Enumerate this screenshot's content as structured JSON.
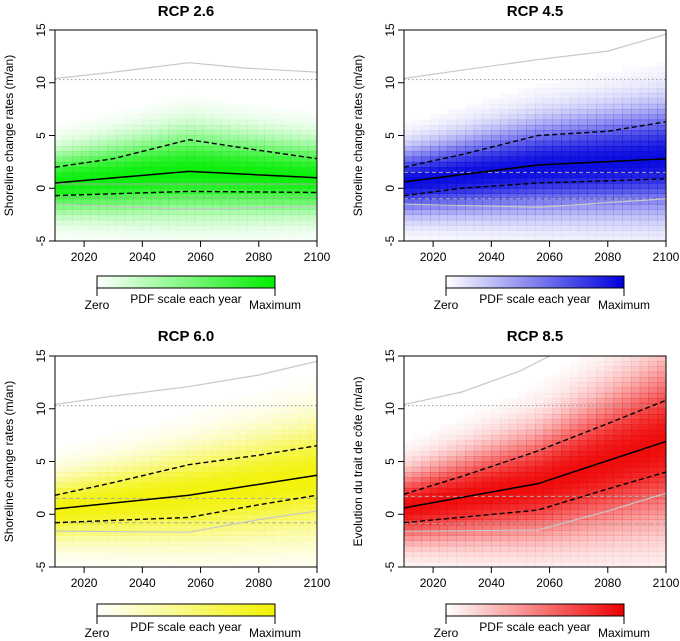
{
  "chart_data": [
    {
      "type": "heatmap",
      "title": "RCP 2.6",
      "ylabel": "Shoreline change rates (m/an)",
      "xlabel": "",
      "xlim": [
        2010,
        2100
      ],
      "ylim": [
        -5,
        15
      ],
      "xticks": [
        2020,
        2040,
        2060,
        2080,
        2100
      ],
      "yticks": [
        -5,
        0,
        5,
        10,
        15
      ],
      "color": "#00ee00",
      "density": {
        "center": [
          [
            2010,
            0.5
          ],
          [
            2056,
            1.6
          ],
          [
            2100,
            1.0
          ]
        ],
        "spread": [
          [
            2010,
            1.9
          ],
          [
            2056,
            2.6
          ],
          [
            2100,
            2.2
          ]
        ]
      },
      "series": [
        {
          "name": "median",
          "style": "solid",
          "x": [
            2010,
            2056,
            2100
          ],
          "y": [
            0.5,
            1.6,
            1.0
          ]
        },
        {
          "name": "upper bound",
          "style": "dashed",
          "x": [
            2010,
            2030,
            2056,
            2080,
            2100
          ],
          "y": [
            2.0,
            2.8,
            4.6,
            3.6,
            2.8
          ]
        },
        {
          "name": "lower bound",
          "style": "dashed",
          "x": [
            2010,
            2056,
            2100
          ],
          "y": [
            -0.7,
            -0.3,
            -0.4
          ]
        },
        {
          "name": "maximum",
          "style": "grey",
          "x": [
            2010,
            2030,
            2056,
            2075,
            2100
          ],
          "y": [
            10.4,
            11.0,
            11.9,
            11.4,
            11.0
          ]
        },
        {
          "name": "minimum",
          "style": "grey",
          "x": [
            2010,
            2056,
            2100
          ],
          "y": [
            -1.5,
            -2.0,
            -1.7
          ]
        }
      ],
      "reference_lines": [
        {
          "style": "dotted",
          "y": 10.3
        },
        {
          "style": "grey-dashed",
          "y": -0.9
        },
        {
          "style": "grey-solid",
          "y": 0.4
        }
      ],
      "legend": {
        "left_label": "Zero",
        "center_label": "PDF scale each year",
        "right_label": "Maximum"
      }
    },
    {
      "type": "heatmap",
      "title": "RCP 4.5",
      "ylabel": "Shoreline change rates (m/an)",
      "xlabel": "",
      "xlim": [
        2010,
        2100
      ],
      "ylim": [
        -5,
        15
      ],
      "xticks": [
        2020,
        2040,
        2060,
        2080,
        2100
      ],
      "yticks": [
        -5,
        0,
        5,
        10,
        15
      ],
      "color": "#0000dd",
      "density": {
        "center": [
          [
            2010,
            0.6
          ],
          [
            2056,
            2.0
          ],
          [
            2100,
            2.8
          ]
        ],
        "spread": [
          [
            2010,
            2.0
          ],
          [
            2056,
            2.8
          ],
          [
            2100,
            3.3
          ]
        ]
      },
      "series": [
        {
          "name": "median",
          "style": "solid",
          "x": [
            2010,
            2056,
            2100
          ],
          "y": [
            0.6,
            2.2,
            2.8
          ]
        },
        {
          "name": "upper bound",
          "style": "dashed",
          "x": [
            2010,
            2030,
            2056,
            2080,
            2100
          ],
          "y": [
            2.0,
            3.2,
            5.0,
            5.4,
            6.3
          ]
        },
        {
          "name": "lower bound",
          "style": "dashed",
          "x": [
            2010,
            2030,
            2056,
            2080,
            2100
          ],
          "y": [
            -0.7,
            0.0,
            0.5,
            0.7,
            0.9
          ]
        },
        {
          "name": "maximum",
          "style": "grey",
          "x": [
            2010,
            2030,
            2056,
            2080,
            2100
          ],
          "y": [
            10.4,
            11.2,
            12.2,
            13.0,
            14.6
          ]
        },
        {
          "name": "minimum",
          "style": "grey",
          "x": [
            2010,
            2056,
            2100
          ],
          "y": [
            -1.5,
            -1.8,
            -1.0
          ]
        }
      ],
      "reference_lines": [
        {
          "style": "dotted",
          "y": 10.3
        },
        {
          "style": "grey-dashed",
          "y": 1.5
        },
        {
          "style": "grey-dashed",
          "y": -1.0
        }
      ],
      "legend": {
        "left_label": "Zero",
        "center_label": "PDF scale each year",
        "right_label": "Maximum"
      }
    },
    {
      "type": "heatmap",
      "title": "RCP 6.0",
      "ylabel": "Shoreline change rates (m/an)",
      "xlabel": "",
      "xlim": [
        2010,
        2100
      ],
      "ylim": [
        -5,
        15
      ],
      "xticks": [
        2020,
        2040,
        2060,
        2080,
        2100
      ],
      "yticks": [
        -5,
        0,
        5,
        10,
        15
      ],
      "color": "#f2f200",
      "density": {
        "center": [
          [
            2010,
            0.5
          ],
          [
            2056,
            1.8
          ],
          [
            2100,
            3.5
          ]
        ],
        "spread": [
          [
            2010,
            2.0
          ],
          [
            2056,
            2.8
          ],
          [
            2100,
            3.5
          ]
        ]
      },
      "series": [
        {
          "name": "median",
          "style": "solid",
          "x": [
            2010,
            2056,
            2100
          ],
          "y": [
            0.5,
            1.8,
            3.7
          ]
        },
        {
          "name": "upper bound",
          "style": "dashed",
          "x": [
            2010,
            2030,
            2056,
            2080,
            2100
          ],
          "y": [
            1.8,
            3.0,
            4.7,
            5.6,
            6.5
          ]
        },
        {
          "name": "lower bound",
          "style": "dashed",
          "x": [
            2010,
            2056,
            2080,
            2100
          ],
          "y": [
            -0.8,
            -0.3,
            0.9,
            1.8
          ]
        },
        {
          "name": "maximum",
          "style": "grey",
          "x": [
            2010,
            2030,
            2056,
            2080,
            2100
          ],
          "y": [
            10.4,
            11.2,
            12.1,
            13.2,
            14.5
          ]
        },
        {
          "name": "minimum",
          "style": "grey",
          "x": [
            2010,
            2056,
            2080,
            2100
          ],
          "y": [
            -1.6,
            -1.7,
            -0.5,
            0.3
          ]
        }
      ],
      "reference_lines": [
        {
          "style": "dotted",
          "y": 10.3
        },
        {
          "style": "grey-dashed",
          "y": 1.5
        },
        {
          "style": "grey-dashed",
          "y": -0.8
        }
      ],
      "legend": {
        "left_label": "Zero",
        "center_label": "PDF scale each year",
        "right_label": "Maximum"
      }
    },
    {
      "type": "heatmap",
      "title": "RCP 8.5",
      "ylabel": "Evolution du trait de côte (m/an)",
      "xlabel": "",
      "xlim": [
        2010,
        2100
      ],
      "ylim": [
        -5,
        15
      ],
      "xticks": [
        2020,
        2040,
        2060,
        2080,
        2100
      ],
      "yticks": [
        -5,
        0,
        5,
        10,
        15
      ],
      "color": "#ee0000",
      "density": {
        "center": [
          [
            2010,
            0.6
          ],
          [
            2056,
            2.8
          ],
          [
            2100,
            6.8
          ]
        ],
        "spread": [
          [
            2010,
            2.2
          ],
          [
            2056,
            3.4
          ],
          [
            2100,
            5.0
          ]
        ]
      },
      "series": [
        {
          "name": "median",
          "style": "solid",
          "x": [
            2010,
            2056,
            2100
          ],
          "y": [
            0.6,
            2.9,
            6.9
          ]
        },
        {
          "name": "upper bound",
          "style": "dashed",
          "x": [
            2010,
            2030,
            2056,
            2080,
            2100
          ],
          "y": [
            1.9,
            3.6,
            6.0,
            8.6,
            10.8
          ]
        },
        {
          "name": "lower bound",
          "style": "dashed",
          "x": [
            2010,
            2056,
            2080,
            2100
          ],
          "y": [
            -0.8,
            0.4,
            2.4,
            4.0
          ]
        },
        {
          "name": "maximum",
          "style": "grey",
          "x": [
            2010,
            2030,
            2050,
            2060
          ],
          "y": [
            10.4,
            11.6,
            13.6,
            15.0
          ]
        },
        {
          "name": "minimum",
          "style": "grey",
          "x": [
            2010,
            2056,
            2080,
            2100
          ],
          "y": [
            -1.6,
            -1.5,
            0.3,
            2.0
          ]
        }
      ],
      "reference_lines": [
        {
          "style": "dotted",
          "y": 10.3
        },
        {
          "style": "grey-dashed",
          "y": 1.7
        },
        {
          "style": "grey-dashed",
          "y": -0.9
        }
      ],
      "legend": {
        "left_label": "Zero",
        "center_label": "PDF scale each year",
        "right_label": "Maximum"
      }
    }
  ]
}
